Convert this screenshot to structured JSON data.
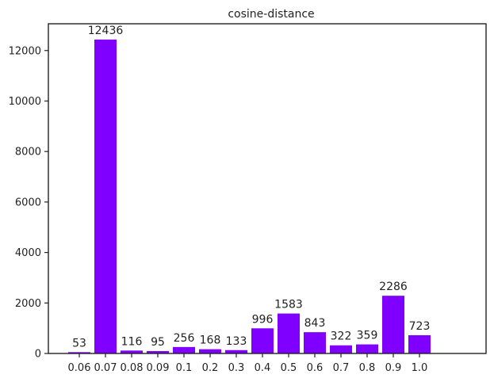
{
  "chart_data": {
    "type": "bar",
    "title": "cosine-distance",
    "xlabel": "",
    "ylabel": "",
    "categories": [
      "0.06",
      "0.07",
      "0.08",
      "0.09",
      "0.1",
      "0.2",
      "0.3",
      "0.4",
      "0.5",
      "0.6",
      "0.7",
      "0.8",
      "0.9",
      "1.0"
    ],
    "values": [
      53,
      12436,
      116,
      95,
      256,
      168,
      133,
      996,
      1583,
      843,
      322,
      359,
      2286,
      723
    ],
    "data_labels": [
      "53",
      "12436",
      "116",
      "95",
      "256",
      "168",
      "133",
      "996",
      "1583",
      "843",
      "322",
      "359",
      "2286",
      "723"
    ],
    "ylim": [
      0,
      13060
    ],
    "yticks": [
      0,
      2000,
      4000,
      6000,
      8000,
      10000,
      12000
    ],
    "ytick_labels": [
      "0",
      "2000",
      "4000",
      "6000",
      "8000",
      "10000",
      "12000"
    ],
    "bar_color": "#7f00ff",
    "grid": false,
    "legend": "none"
  }
}
